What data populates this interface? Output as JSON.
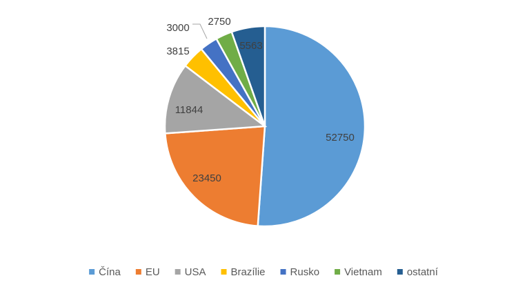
{
  "chart_data": {
    "type": "pie",
    "title": "",
    "categories": [
      "Čína",
      "EU",
      "USA",
      "Brazílie",
      "Rusko",
      "Vietnam",
      "ostatní"
    ],
    "values": [
      52750,
      23450,
      11844,
      3815,
      3000,
      2750,
      5563
    ],
    "data_labels": [
      "52750",
      "23450",
      "11844",
      "3815",
      "3000",
      "2750",
      "5563"
    ],
    "colors": [
      "#5b9bd5",
      "#ed7d31",
      "#a5a5a5",
      "#ffc000",
      "#4472c4",
      "#70ad47",
      "#255e91"
    ],
    "start_angle": "12 o'clock",
    "direction": "clockwise",
    "legend_position": "bottom"
  }
}
